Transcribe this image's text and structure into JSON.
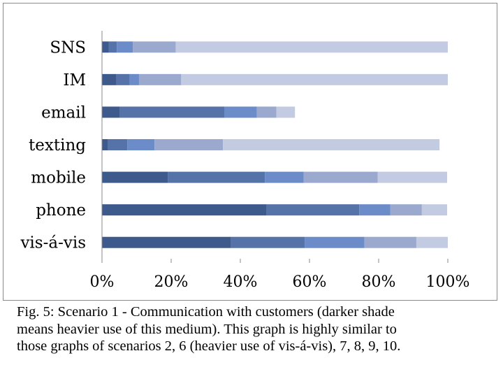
{
  "chart_data": {
    "type": "bar",
    "orientation": "horizontal",
    "stacked": true,
    "percent": true,
    "categories": [
      "SNS",
      "IM",
      "email",
      "texting",
      "mobile",
      "phone",
      "vis-á-vis"
    ],
    "series_values_percent": [
      [
        2,
        4.2,
        5.2,
        1.7,
        19,
        47.6,
        37.3
      ],
      [
        2.3,
        3.8,
        30.3,
        5.6,
        28.1,
        26.8,
        21.3
      ],
      [
        4.6,
        2.7,
        9.3,
        7.9,
        11.2,
        9,
        17.3
      ],
      [
        12.4,
        12.2,
        5.6,
        19.8,
        21.4,
        9.1,
        15
      ],
      [
        78.7,
        77.1,
        5.4,
        62.6,
        20.1,
        7.3,
        9.1
      ]
    ],
    "series_colors": [
      "#3e5a8c",
      "#5573a8",
      "#6b8cc8",
      "#9ba9cf",
      "#c3cbe3"
    ],
    "xlim": [
      0,
      100
    ],
    "xticks": [
      "0%",
      "20%",
      "40%",
      "60%",
      "80%",
      "100%"
    ],
    "grid": false,
    "legend": "none"
  },
  "caption": {
    "line1": "Fig. 5: Scenario 1 - Communication with customers (darker shade",
    "line2": "means heavier use of this medium). This graph is highly similar to",
    "line3": "those graphs of scenarios 2, 6 (heavier use of vis-á-vis), 7, 8, 9, 10."
  }
}
